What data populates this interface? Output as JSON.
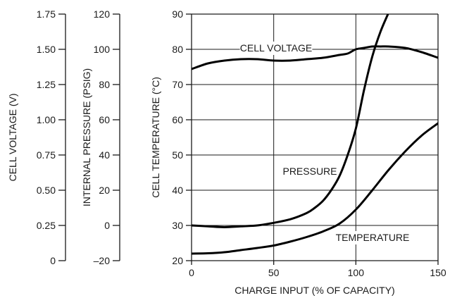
{
  "chart_data": {
    "type": "line",
    "xlabel": "CHARGE INPUT (% OF CAPACITY)",
    "xlim": [
      0,
      150
    ],
    "x_ticks": [
      "0",
      "50",
      "100",
      "150"
    ],
    "grid": true,
    "axes": {
      "cell_voltage": {
        "label": "CELL VOLTAGE (V)",
        "range": [
          0,
          1.75
        ],
        "ticks": [
          "1.75",
          "1.50",
          "1.25",
          "1.00",
          "0.75",
          "0.50",
          "0.25",
          "0"
        ]
      },
      "internal_pressure": {
        "label": "INTERNAL PRESSURE (PSIG)",
        "range": [
          -20,
          120
        ],
        "ticks": [
          "120",
          "100",
          "80",
          "60",
          "40",
          "20",
          "0",
          "–20"
        ]
      },
      "cell_temperature": {
        "label": "CELL TEMPERATURE (°C)",
        "range": [
          20,
          90
        ],
        "ticks": [
          "90",
          "80",
          "70",
          "60",
          "50",
          "40",
          "30",
          "20"
        ]
      }
    },
    "series": [
      {
        "name": "CELL VOLTAGE",
        "axis": "cell_voltage",
        "x": [
          0,
          10,
          20,
          30,
          40,
          50,
          60,
          70,
          80,
          90,
          95,
          100,
          105,
          110,
          115,
          120,
          130,
          140,
          150
        ],
        "y": [
          1.36,
          1.4,
          1.42,
          1.43,
          1.43,
          1.42,
          1.42,
          1.43,
          1.44,
          1.46,
          1.47,
          1.5,
          1.51,
          1.52,
          1.52,
          1.52,
          1.51,
          1.48,
          1.44
        ]
      },
      {
        "name": "PRESSURE",
        "axis": "internal_pressure",
        "x": [
          0,
          10,
          20,
          30,
          40,
          50,
          60,
          70,
          75,
          80,
          85,
          90,
          95,
          100,
          105,
          110,
          115,
          120,
          125,
          130
        ],
        "y": [
          0,
          -0.5,
          -1,
          -0.5,
          0,
          1.5,
          3.5,
          7,
          10,
          14,
          20,
          28,
          40,
          55,
          77,
          96,
          110,
          121,
          132,
          140
        ]
      },
      {
        "name": "TEMPERATURE",
        "axis": "cell_temperature",
        "x": [
          0,
          10,
          20,
          30,
          40,
          50,
          60,
          70,
          80,
          90,
          100,
          110,
          120,
          130,
          140,
          150
        ],
        "y": [
          22,
          22.1,
          22.4,
          23,
          23.6,
          24.3,
          25.4,
          26.7,
          28.3,
          30.5,
          34.5,
          40,
          45.8,
          51,
          55.5,
          59
        ]
      }
    ]
  }
}
